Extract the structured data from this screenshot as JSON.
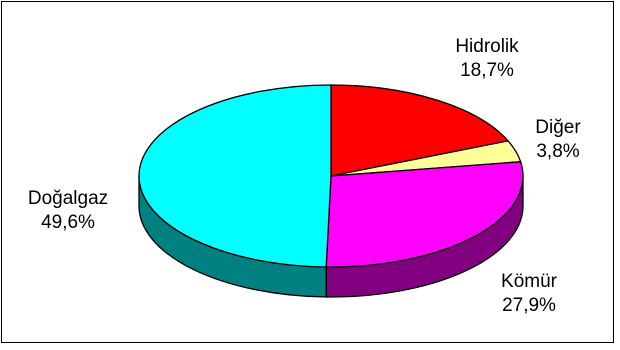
{
  "chart_data": {
    "type": "pie",
    "title": "",
    "three_d": true,
    "start_angle_deg": -90,
    "direction": "clockwise",
    "slices": [
      {
        "label": "Hidrolik",
        "value": 18.7,
        "value_label": "18,7%",
        "color": "#ff0000",
        "side_color": "#800000"
      },
      {
        "label": "Diğer",
        "value": 3.8,
        "value_label": "3,8%",
        "color": "#ffff99",
        "side_color": "#808040"
      },
      {
        "label": "Kömür",
        "value": 27.9,
        "value_label": "27,9%",
        "color": "#ff00ff",
        "side_color": "#800080"
      },
      {
        "label": "Doğalgaz",
        "value": 49.6,
        "value_label": "49,6%",
        "color": "#00ffff",
        "side_color": "#008080"
      }
    ],
    "legend": "none",
    "outline_color": "#000000"
  }
}
